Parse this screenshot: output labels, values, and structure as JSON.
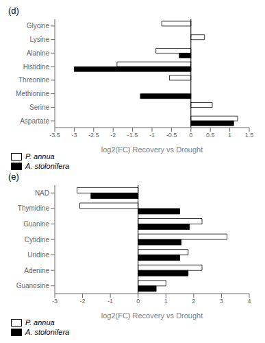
{
  "chart_data": [
    {
      "type": "bar",
      "orientation": "horizontal",
      "title": "(d)",
      "categories": [
        "Aspartate",
        "Serine",
        "Methionine",
        "Threonine",
        "Histidine",
        "Alanine",
        "Lysine",
        "Glycine"
      ],
      "series": [
        {
          "name": "P. annua",
          "color": "white",
          "values": [
            1.2,
            0.55,
            0.0,
            -0.55,
            -1.9,
            -0.9,
            0.35,
            -0.75
          ]
        },
        {
          "name": "A. stolonifera",
          "color": "black",
          "values": [
            1.1,
            0.0,
            -1.3,
            0.0,
            -3.0,
            -0.3,
            0.0,
            0.0
          ]
        }
      ],
      "xlabel": "log2(FC) Recovery vs Drought",
      "xlim": [
        -3.5,
        1.5
      ],
      "xticks": [
        -3.5,
        -3.0,
        -2.5,
        -2.0,
        -1.5,
        -1.0,
        -0.5,
        0.0,
        0.5,
        1.0,
        1.5
      ],
      "legend": "lower left",
      "grid": false
    },
    {
      "type": "bar",
      "orientation": "horizontal",
      "title": "(e)",
      "categories": [
        "Guanosine",
        "Adenine",
        "Uridine",
        "Cytidine",
        "Guanine",
        "Thymidine",
        "NAD"
      ],
      "series": [
        {
          "name": "P. annua",
          "color": "white",
          "values": [
            1.0,
            2.3,
            1.8,
            3.2,
            2.3,
            -2.1,
            -2.2
          ]
        },
        {
          "name": "A. stolonifera",
          "color": "black",
          "values": [
            0.65,
            1.8,
            1.5,
            1.55,
            1.85,
            1.5,
            -1.7
          ]
        }
      ],
      "xlabel": "log2(FC) Recovery vs Drought",
      "xlim": [
        -3.0,
        4.0
      ],
      "xticks": [
        -3,
        -2,
        -1,
        0,
        1,
        2,
        3,
        4
      ],
      "legend": "lower left",
      "grid": false
    }
  ]
}
